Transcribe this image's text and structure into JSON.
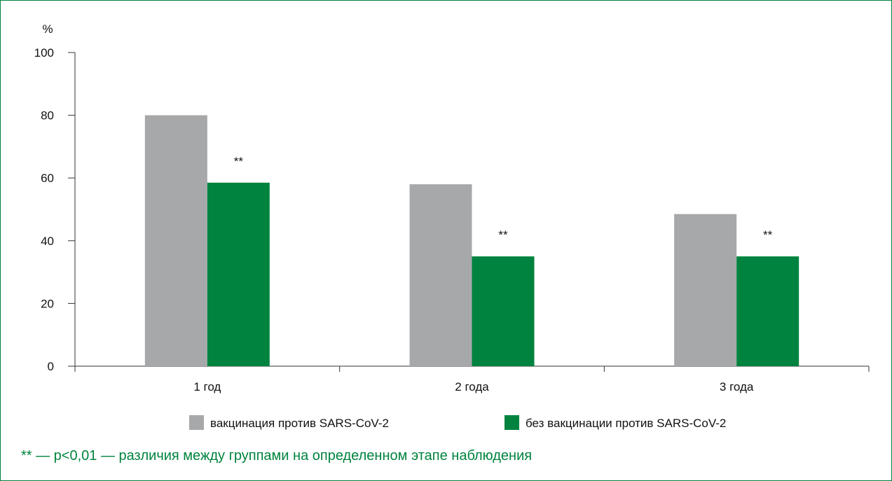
{
  "chart_data": {
    "type": "bar",
    "ylabel": "%",
    "ylim": [
      0,
      100
    ],
    "yticks": [
      0,
      20,
      40,
      60,
      80,
      100
    ],
    "categories": [
      "1 год",
      "2 года",
      "3 года"
    ],
    "series": [
      {
        "name": "вакцинация против SARS-CoV-2",
        "color": "#a7a8aa",
        "values": [
          80,
          58,
          48.5
        ]
      },
      {
        "name": "без вакцинации против SARS-CoV-2",
        "color": "#00833e",
        "values": [
          58.5,
          35,
          35
        ]
      }
    ],
    "annotations": [
      "**",
      "**",
      "**"
    ],
    "grid": false,
    "legend_position": "bottom"
  },
  "footnote": "** — p<0,01 — различия между группами на определенном этапе наблюдения"
}
